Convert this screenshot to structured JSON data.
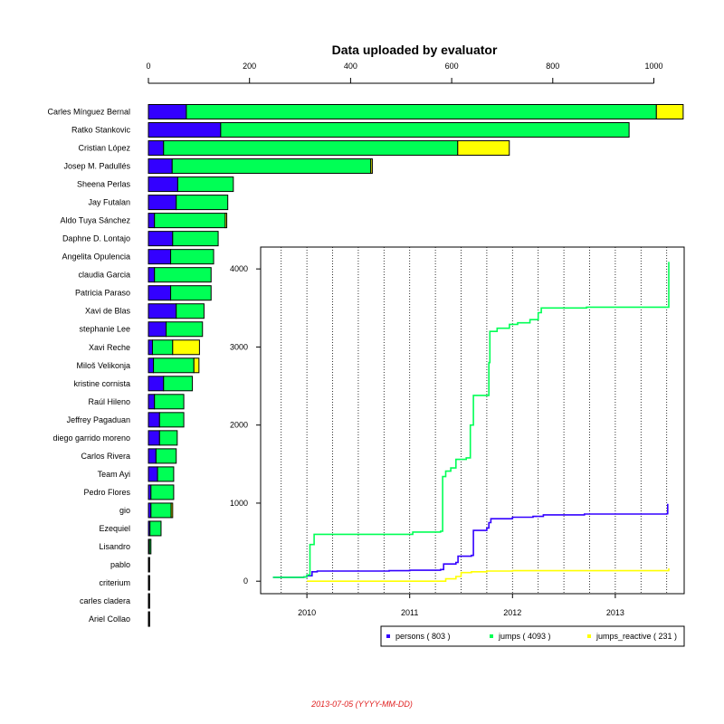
{
  "chart_data": [
    {
      "type": "bar",
      "orientation": "horizontal",
      "stacked": true,
      "title": "Data uploaded by evaluator",
      "xlim": [
        0,
        1060
      ],
      "xticks": [
        0,
        200,
        400,
        600,
        800,
        1000
      ],
      "categories": [
        "Carles Mínguez Bernal",
        "Ratko Stankovic",
        "Cristian López",
        "Josep M. Padullés",
        "Sheena Perlas",
        "Jay Futalan",
        "Aldo Tuya Sánchez",
        "Daphne D. Lontajo",
        "Angelita Opulencia",
        "claudia Garcia",
        "Patricia Paraso",
        "Xavi de Blas",
        "stephanie Lee",
        "Xavi Reche",
        "Miloš Velikonja",
        "kristine cornista",
        "Raúl Hileno",
        "Jeffrey Pagaduan",
        "diego garrido moreno",
        "Carlos Rivera",
        "Team Ayi",
        "Pedro Flores",
        "gio",
        "Ezequiel",
        "Lisandro",
        "pablo",
        "criterium",
        "carles cladera",
        "Ariel Collao"
      ],
      "series": [
        {
          "name": "persons",
          "color": "#3300ff",
          "values": [
            75,
            143,
            30,
            47,
            58,
            55,
            12,
            48,
            44,
            12,
            44,
            55,
            35,
            8,
            10,
            30,
            12,
            22,
            22,
            15,
            18,
            5,
            5,
            3,
            2,
            1,
            1,
            1,
            1
          ]
        },
        {
          "name": "jumps",
          "color": "#00ff55",
          "values": [
            930,
            808,
            582,
            393,
            110,
            102,
            140,
            90,
            85,
            112,
            80,
            55,
            72,
            40,
            80,
            57,
            58,
            48,
            35,
            40,
            32,
            45,
            40,
            22,
            3,
            1,
            1,
            1,
            1
          ]
        },
        {
          "name": "jumps_reactive",
          "color": "#ffff00",
          "values": [
            53,
            0,
            102,
            3,
            0,
            0,
            3,
            0,
            0,
            0,
            0,
            0,
            0,
            53,
            10,
            0,
            0,
            0,
            0,
            0,
            0,
            0,
            3,
            0,
            0,
            0,
            0,
            0,
            0
          ]
        }
      ]
    },
    {
      "type": "line",
      "step": true,
      "xlim": [
        2009.55,
        2013.67
      ],
      "ylim": [
        -160,
        4280
      ],
      "xticks": [
        "2010",
        "2011",
        "2012",
        "2013"
      ],
      "yticks": [
        0,
        1000,
        2000,
        3000,
        4000
      ],
      "grid": "vertical dotted",
      "legend_position": "bottom-right",
      "series": [
        {
          "name": "persons",
          "count": 803,
          "color": "#3300ff",
          "points": [
            [
              2009.67,
              50
            ],
            [
              2009.97,
              55
            ],
            [
              2010.0,
              70
            ],
            [
              2010.05,
              120
            ],
            [
              2010.1,
              130
            ],
            [
              2010.8,
              135
            ],
            [
              2011.0,
              140
            ],
            [
              2011.3,
              150
            ],
            [
              2011.33,
              220
            ],
            [
              2011.45,
              240
            ],
            [
              2011.47,
              320
            ],
            [
              2011.6,
              330
            ],
            [
              2011.62,
              650
            ],
            [
              2011.75,
              680
            ],
            [
              2011.77,
              750
            ],
            [
              2011.79,
              800
            ],
            [
              2012.0,
              820
            ],
            [
              2012.2,
              830
            ],
            [
              2012.3,
              850
            ],
            [
              2012.7,
              860
            ],
            [
              2013.3,
              860
            ],
            [
              2013.5,
              865
            ],
            [
              2013.51,
              990
            ]
          ]
        },
        {
          "name": "jumps",
          "count": 4093,
          "color": "#00ff55",
          "points": [
            [
              2009.67,
              50
            ],
            [
              2009.97,
              55
            ],
            [
              2010.0,
              80
            ],
            [
              2010.03,
              470
            ],
            [
              2010.07,
              600
            ],
            [
              2010.9,
              600
            ],
            [
              2011.03,
              630
            ],
            [
              2011.3,
              640
            ],
            [
              2011.32,
              1340
            ],
            [
              2011.35,
              1410
            ],
            [
              2011.4,
              1450
            ],
            [
              2011.45,
              1560
            ],
            [
              2011.55,
              1580
            ],
            [
              2011.59,
              2000
            ],
            [
              2011.62,
              2380
            ],
            [
              2011.75,
              2380
            ],
            [
              2011.77,
              2800
            ],
            [
              2011.78,
              3200
            ],
            [
              2011.85,
              3240
            ],
            [
              2011.97,
              3290
            ],
            [
              2012.05,
              3310
            ],
            [
              2012.17,
              3350
            ],
            [
              2012.25,
              3440
            ],
            [
              2012.28,
              3500
            ],
            [
              2012.7,
              3500
            ],
            [
              2012.72,
              3510
            ],
            [
              2013.51,
              3510
            ],
            [
              2013.52,
              4090
            ]
          ]
        },
        {
          "name": "jumps_reactive",
          "count": 231,
          "color": "#ffff00",
          "points": [
            [
              2010.0,
              0
            ],
            [
              2011.3,
              0
            ],
            [
              2011.35,
              30
            ],
            [
              2011.45,
              60
            ],
            [
              2011.5,
              110
            ],
            [
              2011.6,
              120
            ],
            [
              2011.75,
              130
            ],
            [
              2012.0,
              135
            ],
            [
              2013.5,
              135
            ],
            [
              2013.52,
              165
            ]
          ]
        }
      ]
    }
  ],
  "footer": {
    "date_text": "2013-07-05 (YYYY-MM-DD)"
  }
}
